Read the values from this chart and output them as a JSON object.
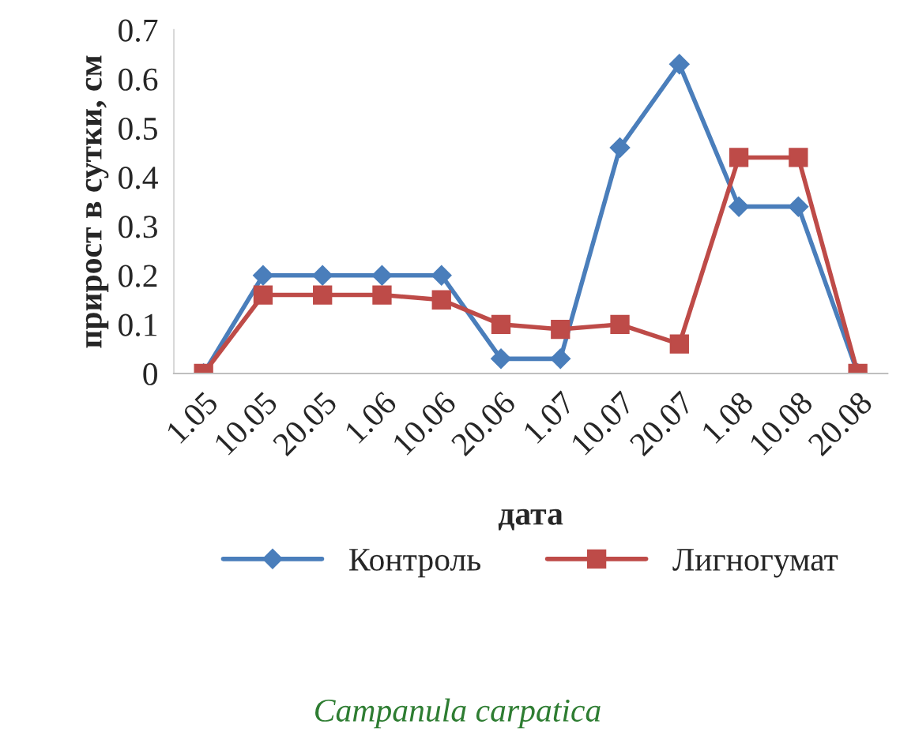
{
  "chart_data": {
    "type": "line",
    "xlabel": "дата",
    "ylabel": "прирост в сутки, см",
    "categories": [
      "1.05",
      "10.05",
      "20.05",
      "1.06",
      "10.06",
      "20.06",
      "1.07",
      "10.07",
      "20.07",
      "1.08",
      "10.08",
      "20.08"
    ],
    "series": [
      {
        "name": "Контроль",
        "color": "#4a7ebb",
        "marker": "diamond",
        "values": [
          0,
          0.2,
          0.2,
          0.2,
          0.2,
          0.03,
          0.03,
          0.46,
          0.63,
          0.34,
          0.34,
          0
        ]
      },
      {
        "name": "Лигногумат",
        "color": "#be4b48",
        "marker": "square",
        "values": [
          0,
          0.16,
          0.16,
          0.16,
          0.15,
          0.1,
          0.09,
          0.1,
          0.06,
          0.44,
          0.44,
          0
        ]
      }
    ],
    "ylim": [
      0,
      0.7
    ],
    "yticks": [
      0,
      0.1,
      0.2,
      0.3,
      0.4,
      0.5,
      0.6,
      0.7
    ],
    "grid": false,
    "legend": "bottom",
    "line_style": "solid",
    "annotations": [
      "Campanula carpatica"
    ]
  }
}
